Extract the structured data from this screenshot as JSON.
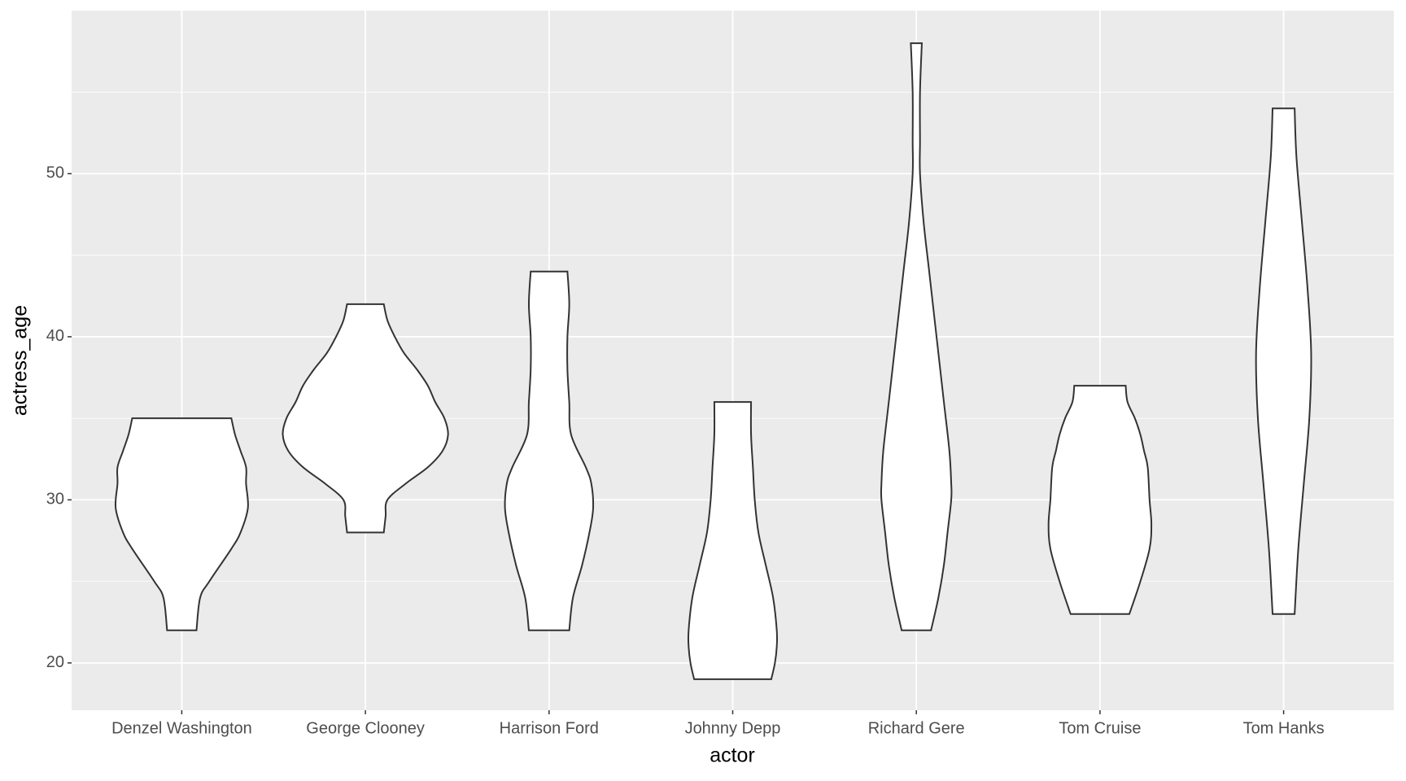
{
  "chart_data": {
    "type": "violin",
    "x_label": "actor",
    "y_label": "actress_age",
    "categories": [
      "Denzel Washington",
      "George Clooney",
      "Harrison Ford",
      "Johnny Depp",
      "Richard Gere",
      "Tom Cruise",
      "Tom Hanks"
    ],
    "violins": [
      {
        "y": [
          22,
          24,
          25,
          27,
          28,
          29.5,
          31,
          32,
          33,
          34,
          35
        ],
        "width": [
          0.08,
          0.1,
          0.15,
          0.27,
          0.32,
          0.36,
          0.35,
          0.35,
          0.32,
          0.29,
          0.27
        ]
      },
      {
        "y": [
          28,
          29,
          30,
          31,
          32,
          33,
          34,
          35,
          36,
          37,
          38,
          39,
          40,
          41,
          42
        ],
        "width": [
          0.1,
          0.11,
          0.12,
          0.22,
          0.34,
          0.42,
          0.45,
          0.43,
          0.38,
          0.34,
          0.28,
          0.21,
          0.16,
          0.12,
          0.1
        ]
      },
      {
        "y": [
          22,
          24,
          26,
          28,
          29.5,
          31,
          32,
          34,
          36,
          38,
          40,
          42,
          44
        ],
        "width": [
          0.11,
          0.13,
          0.18,
          0.22,
          0.24,
          0.23,
          0.2,
          0.12,
          0.11,
          0.1,
          0.1,
          0.11,
          0.1
        ]
      },
      {
        "y": [
          19,
          20,
          21,
          22,
          24,
          26,
          28,
          30,
          32,
          34,
          36
        ],
        "width": [
          0.21,
          0.23,
          0.24,
          0.24,
          0.22,
          0.18,
          0.14,
          0.12,
          0.11,
          0.1,
          0.1
        ]
      },
      {
        "y": [
          22,
          24,
          26,
          28,
          30,
          31,
          33,
          36,
          40,
          44,
          47,
          50,
          52,
          55,
          58
        ],
        "width": [
          0.08,
          0.12,
          0.15,
          0.17,
          0.19,
          0.19,
          0.18,
          0.15,
          0.11,
          0.07,
          0.04,
          0.02,
          0.02,
          0.02,
          0.03
        ]
      },
      {
        "y": [
          23,
          25,
          27,
          28.5,
          30,
          32,
          33,
          34,
          35,
          36,
          37
        ],
        "width": [
          0.16,
          0.22,
          0.27,
          0.28,
          0.27,
          0.26,
          0.24,
          0.22,
          0.19,
          0.15,
          0.14
        ]
      },
      {
        "y": [
          23,
          27,
          31,
          35,
          39,
          43,
          47,
          51,
          54
        ],
        "width": [
          0.06,
          0.08,
          0.11,
          0.14,
          0.15,
          0.13,
          0.1,
          0.07,
          0.06
        ]
      }
    ],
    "fill": "#ffffff",
    "line_color": "#333333",
    "ylim": [
      17.1,
      60
    ],
    "yticks": [
      20,
      30,
      40,
      50
    ],
    "minor_yticks": [
      25,
      35,
      45,
      55
    ],
    "grid": true
  }
}
